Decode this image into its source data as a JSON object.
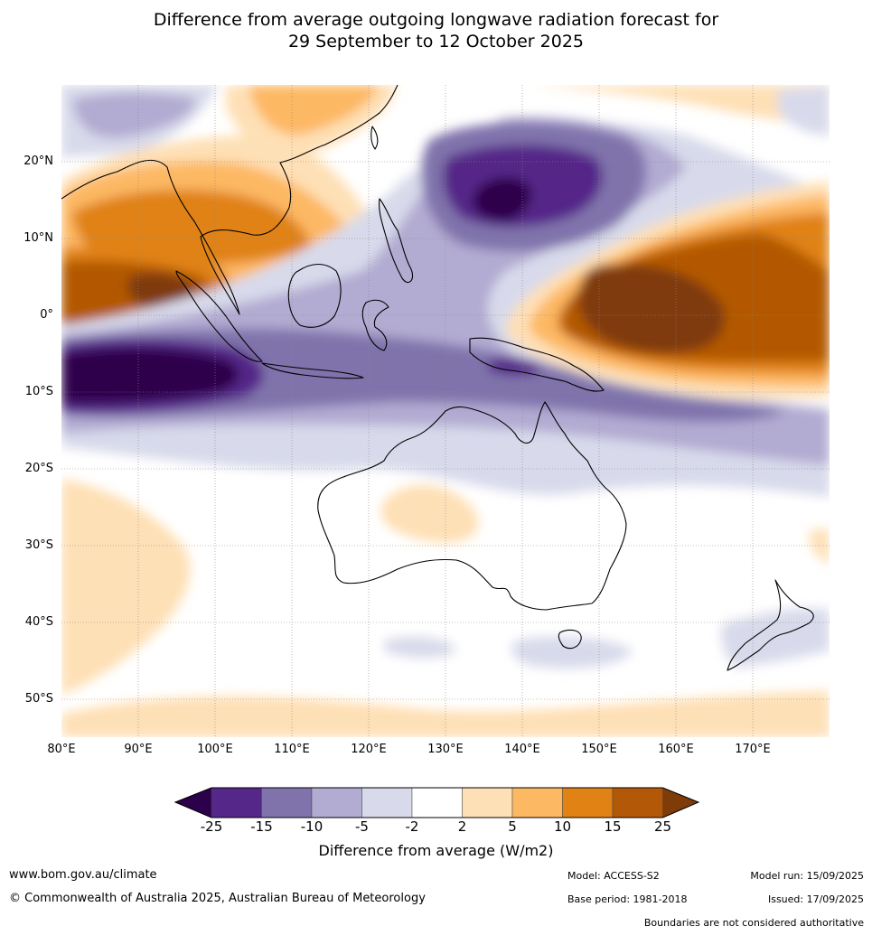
{
  "title_line1": "Difference from average outgoing longwave radiation forecast for",
  "title_line2": "29 September to 12 October 2025",
  "map": {
    "lon_range": [
      80,
      180
    ],
    "lat_range": [
      -55,
      30
    ],
    "lat_ticks": [
      "20°N",
      "10°N",
      "0°",
      "10°S",
      "20°S",
      "30°S",
      "40°S",
      "50°S"
    ],
    "lon_ticks": [
      "80°E",
      "90°E",
      "100°E",
      "110°E",
      "120°E",
      "130°E",
      "140°E",
      "150°E",
      "160°E",
      "170°E"
    ]
  },
  "legend": {
    "label": "Difference from average (W/m2)",
    "ticks": [
      "-25",
      "-15",
      "-10",
      "-5",
      "-2",
      "2",
      "5",
      "10",
      "15",
      "25"
    ],
    "colors": {
      "lt_m25": "#2d004b",
      "m25_m15": "#542788",
      "m15_m10": "#8073ac",
      "m10_m5": "#b2abd2",
      "m5_m2": "#d8daeb",
      "m2_2": "#ffffff",
      "p2_5": "#fee0b6",
      "p5_10": "#fdb863",
      "p10_15": "#e08214",
      "p15_25": "#b35806",
      "gt_25": "#7f3b08"
    }
  },
  "footer": {
    "website": "www.bom.gov.au/climate",
    "copyright": "© Commonwealth of Australia 2025, Australian Bureau of Meteorology",
    "model": "Model: ACCESS-S2",
    "model_run": "Model run: 15/09/2025",
    "base_period": "Base period: 1981-2018",
    "issued": "Issued: 17/09/2025",
    "disclaimer": "Boundaries are not considered authoritative"
  }
}
